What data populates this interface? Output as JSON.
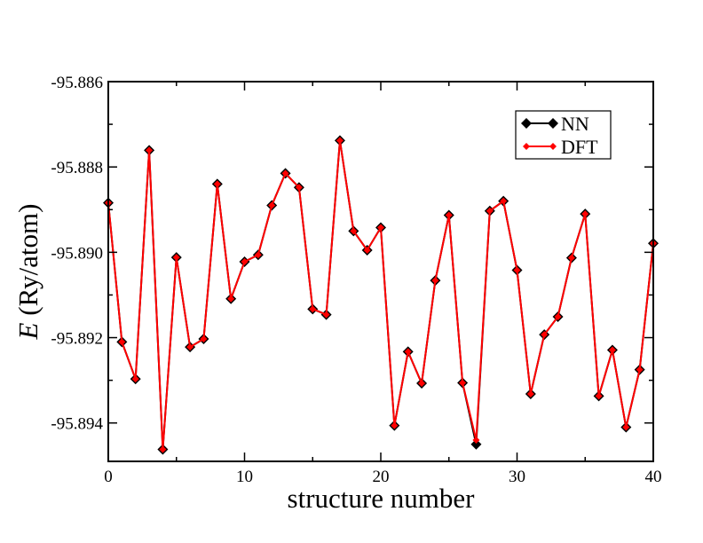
{
  "chart_data": {
    "type": "line",
    "xlabel": "structure number",
    "ylabel_italic": "E",
    "ylabel_rest": " (Ry/atom)",
    "xlim": [
      0,
      40
    ],
    "ylim": [
      -95.8949,
      -95.886
    ],
    "x_ticks": [
      0,
      10,
      20,
      30,
      40
    ],
    "x_tick_labels": [
      "0",
      "10",
      "20",
      "30",
      "40"
    ],
    "y_ticks": [
      -95.886,
      -95.888,
      -95.89,
      -95.892,
      -95.894
    ],
    "y_tick_labels": [
      "-95.886",
      "-95.888",
      "-95.890",
      "-95.892",
      "-95.894"
    ],
    "grid": false,
    "legend_position": "top-right",
    "x": [
      0,
      1,
      2,
      3,
      4,
      5,
      6,
      7,
      8,
      9,
      10,
      11,
      12,
      13,
      14,
      15,
      16,
      17,
      18,
      19,
      20,
      21,
      22,
      23,
      24,
      25,
      26,
      27,
      28,
      29,
      30,
      31,
      32,
      33,
      34,
      35,
      36,
      37,
      38,
      39,
      40
    ],
    "series": [
      {
        "name": "NN",
        "color": "#000000",
        "marker": "diamond",
        "values": [
          -95.88884,
          -95.8921,
          -95.89297,
          -95.88761,
          -95.89462,
          -95.89012,
          -95.89222,
          -95.89203,
          -95.8884,
          -95.89109,
          -95.89022,
          -95.89006,
          -95.8889,
          -95.88815,
          -95.88848,
          -95.89133,
          -95.89146,
          -95.88738,
          -95.8895,
          -95.88995,
          -95.88942,
          -95.89406,
          -95.89233,
          -95.89307,
          -95.89066,
          -95.88913,
          -95.89306,
          -95.8945,
          -95.88903,
          -95.8888,
          -95.89042,
          -95.89332,
          -95.89193,
          -95.89151,
          -95.89013,
          -95.8891,
          -95.89337,
          -95.89229,
          -95.8941,
          -95.89275,
          -95.88979
        ]
      },
      {
        "name": "DFT",
        "color": "#ff0000",
        "marker": "diamond-small",
        "values": [
          -95.88884,
          -95.8921,
          -95.89297,
          -95.88761,
          -95.89462,
          -95.89012,
          -95.89222,
          -95.89203,
          -95.8884,
          -95.89109,
          -95.89022,
          -95.89006,
          -95.8889,
          -95.88815,
          -95.88848,
          -95.89133,
          -95.89146,
          -95.88738,
          -95.8895,
          -95.88995,
          -95.88942,
          -95.89406,
          -95.89233,
          -95.89307,
          -95.89066,
          -95.88913,
          -95.89306,
          -95.8944,
          -95.88903,
          -95.8888,
          -95.89042,
          -95.89332,
          -95.89193,
          -95.89151,
          -95.89013,
          -95.8891,
          -95.89337,
          -95.89229,
          -95.8941,
          -95.89275,
          -95.88979
        ]
      }
    ]
  }
}
